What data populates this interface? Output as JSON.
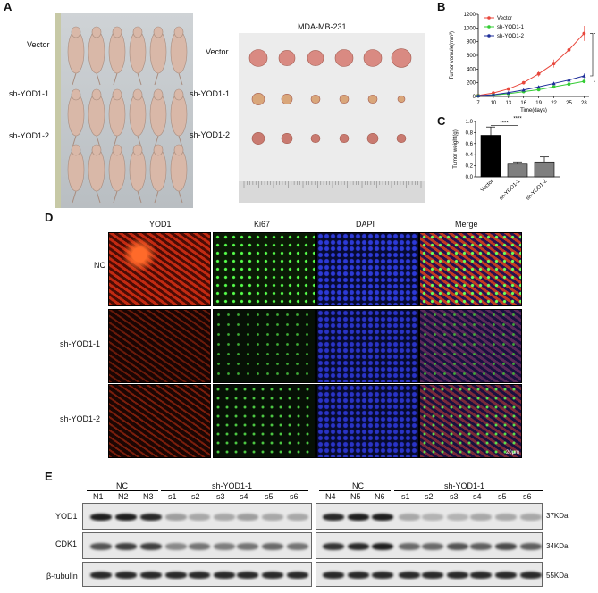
{
  "panels": {
    "a": "A",
    "b": "B",
    "c": "C",
    "d": "D",
    "e": "E"
  },
  "panel_a": {
    "left_labels": [
      "Vector",
      "sh-YOD1-1",
      "sh-YOD1-2"
    ],
    "right_title": "MDA-MB-231",
    "right_labels": [
      "Vector",
      "sh-YOD1-1",
      "sh-YOD1-2"
    ]
  },
  "chart_data": [
    {
      "type": "line",
      "ylabel": "Tumor vomule(mm³)",
      "xlabel": "Time(days)",
      "x": [
        7,
        10,
        13,
        16,
        19,
        22,
        25,
        28
      ],
      "ylim": [
        0,
        1200
      ],
      "yticks": [
        0,
        200,
        400,
        600,
        800,
        1000,
        1200
      ],
      "significance": [
        "****",
        "****"
      ],
      "legend_position": "top-left",
      "series": [
        {
          "name": "Vector",
          "color": "#e8473c",
          "values": [
            15,
            50,
            110,
            200,
            330,
            480,
            680,
            920
          ]
        },
        {
          "name": "sh-YOD1-1",
          "color": "#33cc33",
          "values": [
            10,
            20,
            40,
            70,
            100,
            140,
            180,
            220
          ]
        },
        {
          "name": "sh-YOD1-2",
          "color": "#1f2f9a",
          "values": [
            12,
            25,
            55,
            95,
            140,
            190,
            240,
            300
          ]
        }
      ]
    },
    {
      "type": "bar",
      "ylabel": "Tumor weight(g)",
      "categories": [
        "Vector",
        "sh-YOD1-1",
        "sh-YOD1-2"
      ],
      "values": [
        0.75,
        0.23,
        0.27
      ],
      "errors": [
        0.15,
        0.04,
        0.09
      ],
      "colors": [
        "#000000",
        "#7f7f7f",
        "#7f7f7f"
      ],
      "ylim": [
        0,
        1.0
      ],
      "yticks": [
        "0.0",
        "0.2",
        "0.4",
        "0.6",
        "0.8",
        "1.0"
      ],
      "significance": [
        "****",
        "****"
      ]
    }
  ],
  "panel_d": {
    "columns": [
      "YOD1",
      "Ki67",
      "DAPI",
      "Merge"
    ],
    "rows": [
      "NC",
      "sh-YOD1-1",
      "sh-YOD1-2"
    ],
    "scale": "20μm"
  },
  "panel_e": {
    "group_left": [
      "NC",
      "sh-YOD1-1"
    ],
    "group_right": [
      "NC",
      "sh-YOD1-1"
    ],
    "lanes_left": [
      "N1",
      "N2",
      "N3",
      "s1",
      "s2",
      "s3",
      "s4",
      "s5",
      "s6"
    ],
    "lanes_right": [
      "N4",
      "N5",
      "N6",
      "s1",
      "s2",
      "s3",
      "s4",
      "s5",
      "s6"
    ],
    "proteins": [
      "YOD1",
      "CDK1",
      "β-tubulin"
    ],
    "weights": [
      "37KDa",
      "34KDa",
      "55KDa"
    ]
  }
}
